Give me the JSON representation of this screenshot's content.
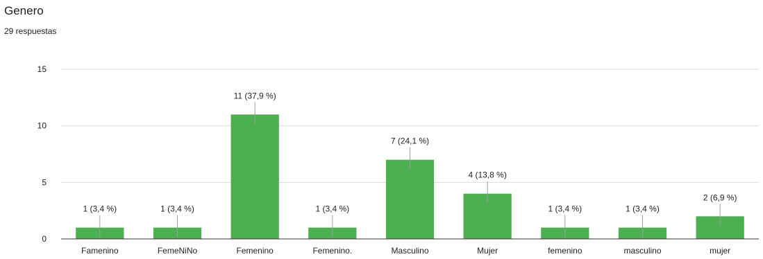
{
  "header": {
    "title": "Genero",
    "responses": "29 respuestas"
  },
  "colors": {
    "bar": "#4caf50",
    "grid": "#dadce0",
    "axis": "#333333",
    "label_line": "#9e9e9e",
    "text": "#202124"
  },
  "chart_data": {
    "type": "bar",
    "title": "Genero",
    "categories": [
      "Famenino",
      "FemeNiNo",
      "Femenino",
      "Femenino.",
      "Masculino",
      "Mujer",
      "femenino",
      "masculino",
      "mujer"
    ],
    "values": [
      1,
      1,
      11,
      1,
      7,
      4,
      1,
      1,
      2
    ],
    "data_labels": [
      "1 (3,4 %)",
      "1 (3,4 %)",
      "11 (37,9 %)",
      "1 (3,4 %)",
      "7 (24,1 %)",
      "4 (13,8 %)",
      "1 (3,4 %)",
      "1 (3,4 %)",
      "2 (6,9 %)"
    ],
    "y_ticks": [
      0,
      5,
      10,
      15
    ],
    "ylim": [
      0,
      15
    ],
    "xlabel": "",
    "ylabel": "",
    "grid": true,
    "legend": "none"
  }
}
